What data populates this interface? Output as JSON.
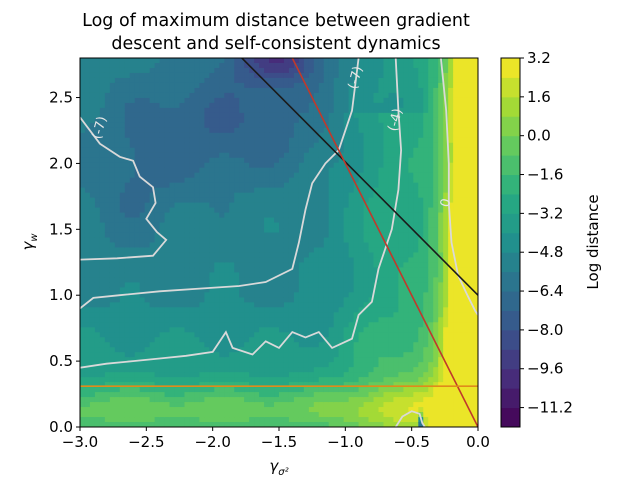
{
  "chart_data": {
    "type": "heatmap",
    "title_lines": [
      "Log of maximum distance between gradient",
      "descent and self-consistent dynamics"
    ],
    "xlabel_base": "γ",
    "xlabel_sub": "σ²",
    "ylabel_base": "γ",
    "ylabel_sub": "w",
    "xlim": [
      -3.0,
      0.0
    ],
    "ylim": [
      0.0,
      2.8
    ],
    "xticks": [
      -3.0,
      -2.5,
      -2.0,
      -1.5,
      -1.0,
      -0.5,
      0.0
    ],
    "xtick_labels": [
      "−3.0",
      "−2.5",
      "−2.0",
      "−1.5",
      "−1.0",
      "−0.5",
      "0.0"
    ],
    "yticks": [
      0.0,
      0.5,
      1.0,
      1.5,
      2.0,
      2.5
    ],
    "ytick_labels": [
      "0.0",
      "0.5",
      "1.0",
      "1.5",
      "2.0",
      "2.5"
    ],
    "colorbar": {
      "label": "Log distance",
      "range": [
        -12.0,
        3.2
      ],
      "levels": 19,
      "ticks": [
        3.2,
        1.6,
        0.0,
        -1.6,
        -3.2,
        -4.8,
        -6.4,
        -8.0,
        -9.6,
        -11.2
      ],
      "tick_labels": [
        "3.2",
        "1.6",
        "0.0",
        "−1.6",
        "−3.2",
        "−4.8",
        "−6.4",
        "−8.0",
        "−9.6",
        "−11.2"
      ],
      "colormap": "viridis"
    },
    "contour_labels": [
      {
        "text": "(-7)",
        "x": -2.85,
        "y": 2.27
      },
      {
        "text": "(-7)",
        "x": -0.92,
        "y": 2.65
      },
      {
        "text": "(-4)",
        "x": -0.62,
        "y": 2.33
      },
      {
        "text": "0",
        "x": -0.24,
        "y": 1.7
      }
    ],
    "contour_lines": [
      {
        "level": -7,
        "points": [
          [
            -3.0,
            2.35
          ],
          [
            -2.85,
            2.15
          ],
          [
            -2.7,
            2.05
          ],
          [
            -2.6,
            2.02
          ],
          [
            -2.55,
            1.9
          ],
          [
            -2.45,
            1.82
          ],
          [
            -2.43,
            1.7
          ],
          [
            -2.5,
            1.58
          ],
          [
            -2.42,
            1.48
          ],
          [
            -2.35,
            1.42
          ],
          [
            -2.45,
            1.3
          ],
          [
            -2.72,
            1.28
          ],
          [
            -3.0,
            1.27
          ]
        ]
      },
      {
        "level": -7,
        "points": [
          [
            -3.0,
            0.9
          ],
          [
            -2.9,
            0.98
          ],
          [
            -2.7,
            1.0
          ],
          [
            -2.4,
            1.03
          ],
          [
            -2.1,
            1.05
          ],
          [
            -1.8,
            1.07
          ],
          [
            -1.6,
            1.1
          ],
          [
            -1.4,
            1.2
          ],
          [
            -1.35,
            1.4
          ],
          [
            -1.3,
            1.65
          ],
          [
            -1.25,
            1.85
          ],
          [
            -1.15,
            2.0
          ],
          [
            -1.05,
            2.1
          ],
          [
            -0.95,
            2.4
          ],
          [
            -0.9,
            2.8
          ]
        ]
      },
      {
        "level": -4,
        "points": [
          [
            -3.0,
            0.45
          ],
          [
            -2.8,
            0.48
          ],
          [
            -2.6,
            0.5
          ],
          [
            -2.4,
            0.52
          ],
          [
            -2.2,
            0.54
          ],
          [
            -2.0,
            0.57
          ],
          [
            -1.9,
            0.72
          ],
          [
            -1.85,
            0.6
          ],
          [
            -1.7,
            0.55
          ],
          [
            -1.6,
            0.65
          ],
          [
            -1.5,
            0.6
          ],
          [
            -1.4,
            0.72
          ],
          [
            -1.3,
            0.68
          ],
          [
            -1.2,
            0.72
          ],
          [
            -1.1,
            0.6
          ],
          [
            -0.95,
            0.67
          ],
          [
            -0.9,
            0.85
          ],
          [
            -0.8,
            0.95
          ],
          [
            -0.75,
            1.2
          ],
          [
            -0.65,
            1.5
          ],
          [
            -0.6,
            1.8
          ],
          [
            -0.58,
            2.1
          ],
          [
            -0.6,
            2.4
          ],
          [
            -0.62,
            2.8
          ]
        ]
      },
      {
        "level": 0,
        "points": [
          [
            -0.28,
            2.8
          ],
          [
            -0.24,
            2.4
          ],
          [
            -0.22,
            2.0
          ],
          [
            -0.22,
            1.7
          ],
          [
            -0.2,
            1.4
          ],
          [
            -0.15,
            1.15
          ],
          [
            -0.08,
            1.0
          ],
          [
            -0.02,
            0.88
          ],
          [
            0.0,
            0.85
          ]
        ]
      },
      {
        "level": 0,
        "points": [
          [
            -0.62,
            0.0
          ],
          [
            -0.57,
            0.08
          ],
          [
            -0.5,
            0.12
          ],
          [
            -0.44,
            0.1
          ],
          [
            -0.42,
            0.03
          ],
          [
            -0.4,
            0.0
          ]
        ]
      }
    ],
    "reference_lines": [
      {
        "color": "#1a1a1a",
        "from": [
          -1.78,
          2.8
        ],
        "to": [
          0.0,
          1.0
        ]
      },
      {
        "color": "#c0392b",
        "from": [
          -1.4,
          2.8
        ],
        "to": [
          0.0,
          0.0
        ]
      },
      {
        "color": "#e08b1a",
        "from": [
          -3.0,
          0.31
        ],
        "to": [
          0.0,
          0.31
        ]
      }
    ]
  }
}
